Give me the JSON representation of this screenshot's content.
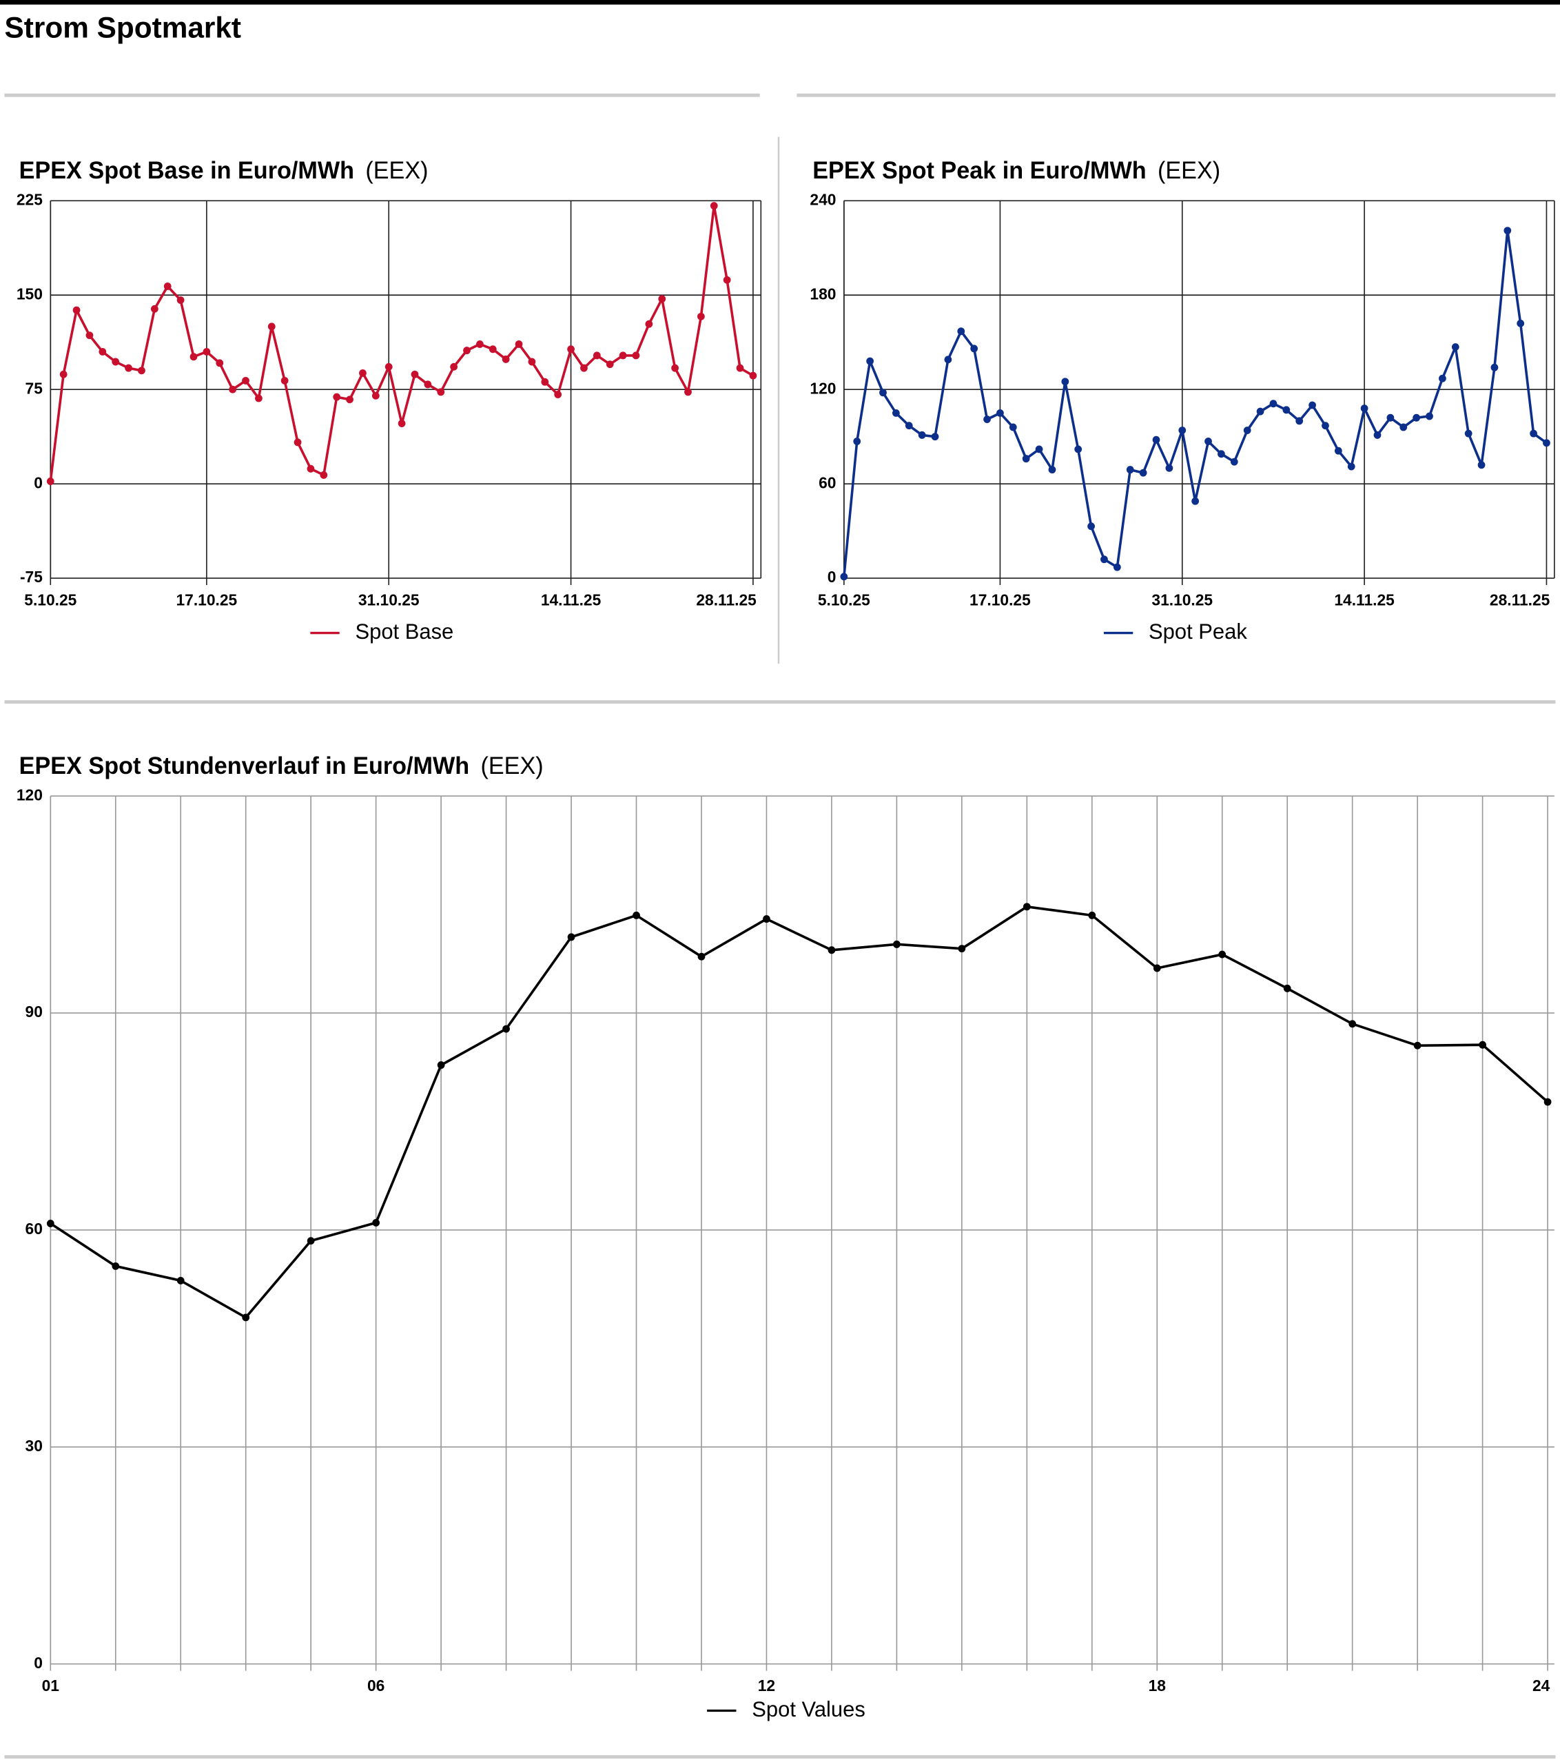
{
  "page_title": "Strom Spotmarkt",
  "chart_data": [
    {
      "type": "line",
      "title": "EPEX Spot Base in Euro/MWh",
      "source": "(EEX)",
      "categories": [
        "5.10.25",
        null,
        null,
        null,
        null,
        null,
        null,
        null,
        null,
        null,
        null,
        null,
        "17.10.25",
        null,
        null,
        null,
        null,
        null,
        null,
        null,
        null,
        null,
        null,
        null,
        null,
        null,
        "31.10.25",
        null,
        null,
        null,
        null,
        null,
        null,
        null,
        null,
        null,
        null,
        null,
        null,
        null,
        "14.11.25",
        null,
        null,
        null,
        null,
        null,
        null,
        null,
        null,
        null,
        null,
        null,
        null,
        null,
        "28.11.25"
      ],
      "series": [
        {
          "name": "Spot Base",
          "color": "#c8102e",
          "values": [
            2,
            87,
            138,
            118,
            105,
            97,
            92,
            90,
            139,
            157,
            146,
            101,
            105,
            96,
            75,
            82,
            68,
            125,
            82,
            33,
            12,
            7,
            69,
            67,
            88,
            70,
            93,
            48,
            87,
            79,
            73,
            93,
            106,
            111,
            107,
            99,
            111,
            97,
            81,
            71,
            107,
            92,
            102,
            95,
            102,
            102,
            127,
            147,
            92,
            73,
            133,
            221,
            162,
            92,
            86
          ]
        }
      ],
      "ylim": [
        -75,
        225
      ],
      "yticks": [
        -75,
        0,
        75,
        150,
        225
      ],
      "grid": true,
      "xgrid": "labeled"
    },
    {
      "type": "line",
      "title": "EPEX Spot Peak in Euro/MWh",
      "source": "(EEX)",
      "categories": [
        "5.10.25",
        null,
        null,
        null,
        null,
        null,
        null,
        null,
        null,
        null,
        null,
        null,
        "17.10.25",
        null,
        null,
        null,
        null,
        null,
        null,
        null,
        null,
        null,
        null,
        null,
        null,
        null,
        "31.10.25",
        null,
        null,
        null,
        null,
        null,
        null,
        null,
        null,
        null,
        null,
        null,
        null,
        null,
        "14.11.25",
        null,
        null,
        null,
        null,
        null,
        null,
        null,
        null,
        null,
        null,
        null,
        null,
        null,
        "28.11.25"
      ],
      "series": [
        {
          "name": "Spot Peak",
          "color": "#0d2f8c",
          "values": [
            1,
            87,
            138,
            118,
            105,
            97,
            91,
            90,
            139,
            157,
            146,
            101,
            105,
            96,
            76,
            82,
            69,
            125,
            82,
            33,
            12,
            7,
            69,
            67,
            88,
            70,
            94,
            49,
            87,
            79,
            74,
            94,
            106,
            111,
            107,
            100,
            110,
            97,
            81,
            71,
            108,
            91,
            102,
            96,
            102,
            103,
            127,
            147,
            92,
            72,
            134,
            221,
            162,
            92,
            86
          ]
        }
      ],
      "ylim": [
        0,
        240
      ],
      "yticks": [
        0,
        60,
        120,
        180,
        240
      ],
      "grid": true,
      "xgrid": "labeled"
    },
    {
      "type": "line",
      "title": "EPEX Spot Stundenverlauf in Euro/MWh",
      "source": "(EEX)",
      "categories": [
        "01",
        null,
        null,
        null,
        null,
        "06",
        null,
        null,
        null,
        null,
        null,
        "12",
        null,
        null,
        null,
        null,
        null,
        "18",
        null,
        null,
        null,
        null,
        null,
        "24"
      ],
      "series": [
        {
          "name": "Spot Values",
          "color": "#000000",
          "values": [
            60.9,
            55.0,
            53.0,
            47.9,
            58.5,
            61.0,
            82.8,
            87.8,
            100.5,
            103.5,
            97.8,
            103.0,
            98.7,
            99.5,
            98.9,
            104.7,
            103.5,
            96.2,
            98.1,
            93.4,
            88.5,
            85.5,
            85.6,
            77.7
          ]
        }
      ],
      "ylim": [
        0,
        120
      ],
      "yticks": [
        0,
        30,
        60,
        90,
        120
      ],
      "grid": true,
      "xgrid": "all"
    }
  ]
}
